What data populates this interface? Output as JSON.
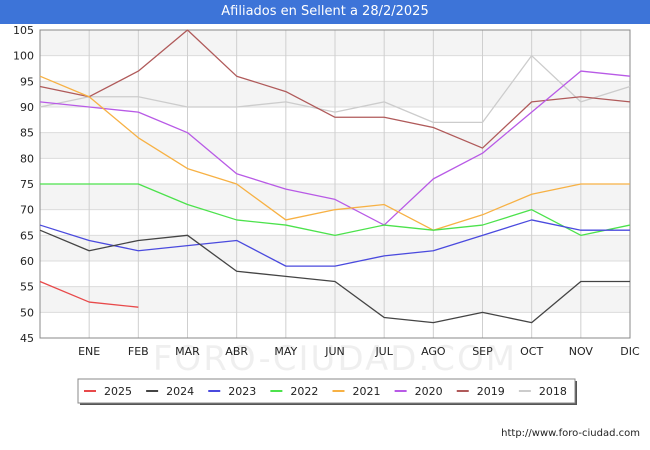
{
  "header": {
    "title": "Afiliados en Sellent a 28/2/2025"
  },
  "footer": {
    "url": "http://www.foro-ciudad.com"
  },
  "watermark": "FORO-CIUDAD.COM",
  "chart_data": {
    "type": "line",
    "title": "Afiliados en Sellent a 28/2/2025",
    "xlabel": "",
    "ylabel": "",
    "categories": [
      "",
      "ENE",
      "FEB",
      "MAR",
      "ABR",
      "MAY",
      "JUN",
      "JUL",
      "AGO",
      "SEP",
      "OCT",
      "NOV",
      "DIC"
    ],
    "ylim": [
      45,
      105
    ],
    "yticks": [
      45,
      50,
      55,
      60,
      65,
      70,
      75,
      80,
      85,
      90,
      95,
      100,
      105
    ],
    "grid": true,
    "legend_position": "bottom",
    "series": [
      {
        "name": "2025",
        "color": "#e8494a",
        "values": [
          56,
          52,
          51,
          null,
          null,
          null,
          null,
          null,
          null,
          null,
          null,
          null,
          null
        ]
      },
      {
        "name": "2024",
        "color": "#444444",
        "values": [
          66,
          62,
          64,
          65,
          58,
          57,
          56,
          49,
          48,
          50,
          48,
          56,
          56
        ]
      },
      {
        "name": "2023",
        "color": "#4a4ade",
        "values": [
          67,
          64,
          62,
          63,
          64,
          59,
          59,
          61,
          62,
          65,
          68,
          66,
          66
        ]
      },
      {
        "name": "2022",
        "color": "#4ce24c",
        "values": [
          75,
          75,
          75,
          71,
          68,
          67,
          65,
          67,
          66,
          67,
          70,
          65,
          67
        ]
      },
      {
        "name": "2021",
        "color": "#f7b144",
        "values": [
          96,
          92,
          84,
          78,
          75,
          68,
          70,
          71,
          66,
          69,
          73,
          75,
          75
        ]
      },
      {
        "name": "2020",
        "color": "#b85ae6",
        "values": [
          91,
          90,
          89,
          85,
          77,
          74,
          72,
          67,
          76,
          81,
          89,
          97,
          96
        ]
      },
      {
        "name": "2019",
        "color": "#b05a5a",
        "values": [
          94,
          92,
          97,
          105,
          96,
          93,
          88,
          88,
          86,
          82,
          91,
          92,
          91
        ]
      },
      {
        "name": "2018",
        "color": "#cccccc",
        "values": [
          90,
          92,
          92,
          90,
          90,
          91,
          89,
          91,
          87,
          87,
          100,
          91,
          94
        ]
      }
    ]
  }
}
